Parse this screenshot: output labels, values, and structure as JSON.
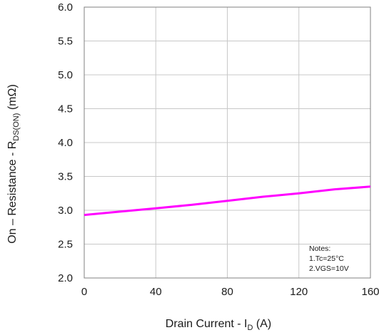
{
  "chart_data": {
    "type": "line",
    "title": "",
    "xlabel": {
      "prefix": "Drain Current - I",
      "sub": "D",
      "suffix": " (A)"
    },
    "ylabel": {
      "prefix": "On – Resistance - R",
      "sub": "DS(ON)",
      "suffix": " (mΩ)"
    },
    "xlim": [
      0,
      160
    ],
    "ylim": [
      2.0,
      6.0
    ],
    "x_ticks": [
      0,
      40,
      80,
      120,
      160
    ],
    "x_tick_labels": [
      "0",
      "40",
      "80",
      "120",
      "160"
    ],
    "y_ticks": [
      2.0,
      2.5,
      3.0,
      3.5,
      4.0,
      4.5,
      5.0,
      5.5,
      6.0
    ],
    "y_tick_labels": [
      "2.0",
      "2.5",
      "3.0",
      "3.5",
      "4.0",
      "4.5",
      "5.0",
      "5.5",
      "6.0"
    ],
    "grid": true,
    "legend": "none",
    "series": [
      {
        "color": "#ff00ff",
        "x": [
          0,
          20,
          40,
          60,
          80,
          100,
          120,
          140,
          160
        ],
        "y": [
          2.93,
          2.98,
          3.03,
          3.08,
          3.14,
          3.2,
          3.25,
          3.31,
          3.35
        ]
      }
    ],
    "annotations": [
      "Notes:",
      "1.Tc=25°C",
      "2.VGS=10V"
    ]
  }
}
